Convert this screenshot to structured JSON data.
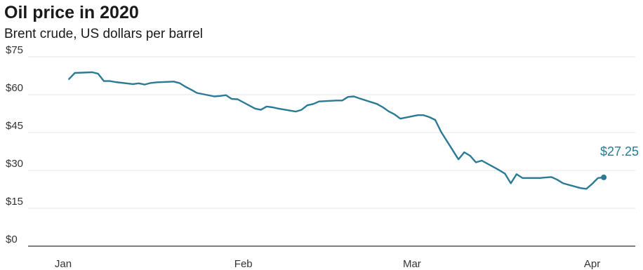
{
  "chart_data": {
    "type": "line",
    "title": "Oil price in 2020",
    "subtitle": "Brent crude, US dollars per barrel",
    "xlabel": "",
    "ylabel": "",
    "ylim": [
      0,
      75
    ],
    "yticks": [
      {
        "value": 0,
        "label": "$0"
      },
      {
        "value": 15,
        "label": "$15"
      },
      {
        "value": 30,
        "label": "$30"
      },
      {
        "value": 45,
        "label": "$45"
      },
      {
        "value": 60,
        "label": "$60"
      },
      {
        "value": 75,
        "label": "$75"
      }
    ],
    "xlim": [
      "2020-01-01",
      "2020-04-06"
    ],
    "xticks": [
      {
        "date": "2020-01-01",
        "label": "Jan"
      },
      {
        "date": "2020-02-01",
        "label": "Feb"
      },
      {
        "date": "2020-03-01",
        "label": "Mar"
      },
      {
        "date": "2020-04-01",
        "label": "Apr"
      }
    ],
    "grid": true,
    "line_color": "#2b7a95",
    "end_label": "$27.25",
    "series": [
      {
        "points": [
          [
            "2020-01-02",
            66.2
          ],
          [
            "2020-01-03",
            68.6
          ],
          [
            "2020-01-06",
            68.9
          ],
          [
            "2020-01-07",
            68.3
          ],
          [
            "2020-01-08",
            65.4
          ],
          [
            "2020-01-09",
            65.4
          ],
          [
            "2020-01-10",
            65.0
          ],
          [
            "2020-01-13",
            64.2
          ],
          [
            "2020-01-14",
            64.5
          ],
          [
            "2020-01-15",
            64.0
          ],
          [
            "2020-01-16",
            64.6
          ],
          [
            "2020-01-17",
            64.9
          ],
          [
            "2020-01-20",
            65.2
          ],
          [
            "2020-01-21",
            64.6
          ],
          [
            "2020-01-22",
            63.2
          ],
          [
            "2020-01-23",
            62.0
          ],
          [
            "2020-01-24",
            60.7
          ],
          [
            "2020-01-27",
            59.3
          ],
          [
            "2020-01-28",
            59.5
          ],
          [
            "2020-01-29",
            59.8
          ],
          [
            "2020-01-30",
            58.3
          ],
          [
            "2020-01-31",
            58.2
          ],
          [
            "2020-02-03",
            54.5
          ],
          [
            "2020-02-04",
            54.0
          ],
          [
            "2020-02-05",
            55.3
          ],
          [
            "2020-02-06",
            55.0
          ],
          [
            "2020-02-07",
            54.5
          ],
          [
            "2020-02-10",
            53.3
          ],
          [
            "2020-02-11",
            54.0
          ],
          [
            "2020-02-12",
            55.8
          ],
          [
            "2020-02-13",
            56.3
          ],
          [
            "2020-02-14",
            57.3
          ],
          [
            "2020-02-17",
            57.7
          ],
          [
            "2020-02-18",
            57.7
          ],
          [
            "2020-02-19",
            59.1
          ],
          [
            "2020-02-20",
            59.3
          ],
          [
            "2020-02-21",
            58.5
          ],
          [
            "2020-02-24",
            56.3
          ],
          [
            "2020-02-25",
            55.0
          ],
          [
            "2020-02-26",
            53.4
          ],
          [
            "2020-02-27",
            52.2
          ],
          [
            "2020-02-28",
            50.5
          ],
          [
            "2020-03-02",
            51.9
          ],
          [
            "2020-03-03",
            51.9
          ],
          [
            "2020-03-04",
            51.1
          ],
          [
            "2020-03-05",
            50.0
          ],
          [
            "2020-03-06",
            45.3
          ],
          [
            "2020-03-09",
            34.4
          ],
          [
            "2020-03-10",
            37.2
          ],
          [
            "2020-03-11",
            35.8
          ],
          [
            "2020-03-12",
            33.2
          ],
          [
            "2020-03-13",
            33.9
          ],
          [
            "2020-03-16",
            30.1
          ],
          [
            "2020-03-17",
            28.7
          ],
          [
            "2020-03-18",
            24.9
          ],
          [
            "2020-03-19",
            28.5
          ],
          [
            "2020-03-20",
            27.0
          ],
          [
            "2020-03-23",
            27.0
          ],
          [
            "2020-03-24",
            27.2
          ],
          [
            "2020-03-25",
            27.4
          ],
          [
            "2020-03-26",
            26.3
          ],
          [
            "2020-03-27",
            24.9
          ],
          [
            "2020-03-30",
            23.0
          ],
          [
            "2020-03-31",
            22.7
          ],
          [
            "2020-04-01",
            24.7
          ],
          [
            "2020-04-02",
            27.0
          ],
          [
            "2020-04-03",
            27.25
          ]
        ]
      }
    ]
  }
}
